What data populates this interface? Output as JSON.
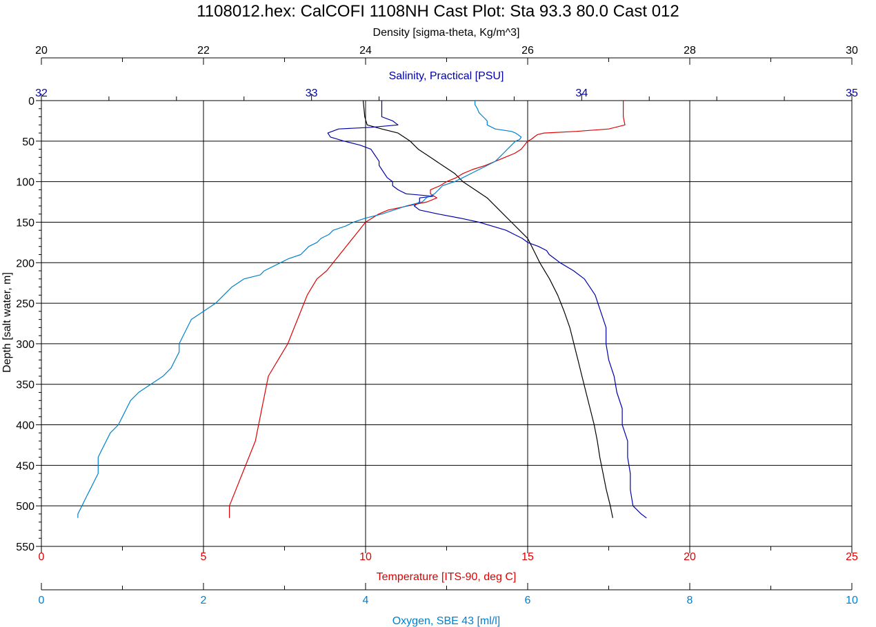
{
  "chart_data": {
    "type": "line",
    "title": "1108012.hex:  CalCOFI 1108NH Cast Plot: Sta 93.3 80.0 Cast 012",
    "ylabel": "Depth [salt water, m]",
    "y_ticks": [
      "0",
      "50",
      "100",
      "150",
      "200",
      "250",
      "300",
      "350",
      "400",
      "450",
      "500",
      "550"
    ],
    "ylim": [
      0,
      550
    ],
    "y_inverted": true,
    "grid": true,
    "axes": {
      "density": {
        "label": "Density [sigma-theta, Kg/m^3]",
        "range": [
          20,
          30
        ],
        "ticks": [
          "20",
          "22",
          "24",
          "26",
          "28",
          "30"
        ],
        "position": "top-outer",
        "color": "#000000"
      },
      "salinity": {
        "label": "Salinity, Practical [PSU]",
        "range": [
          32,
          35
        ],
        "ticks": [
          "32",
          "33",
          "34",
          "35"
        ],
        "position": "top-inner",
        "color": "#0000aa"
      },
      "temperature": {
        "label": "Temperature [ITS-90, deg C]",
        "range": [
          0,
          25
        ],
        "ticks": [
          "0",
          "5",
          "10",
          "15",
          "20",
          "25"
        ],
        "position": "bottom-inner",
        "color": "#dd0000"
      },
      "oxygen": {
        "label": "Oxygen, SBE 43 [ml/l]",
        "range": [
          0,
          10
        ],
        "ticks": [
          "0",
          "2",
          "4",
          "6",
          "8",
          "10"
        ],
        "position": "bottom-outer",
        "color": "#0080d0"
      }
    },
    "series": [
      {
        "name": "Density [sigma-theta, Kg/m^3]",
        "axis": "density",
        "color": "#000000",
        "depth": [
          0,
          10,
          20,
          30,
          35,
          40,
          50,
          60,
          70,
          80,
          90,
          100,
          110,
          120,
          130,
          140,
          150,
          160,
          170,
          180,
          190,
          200,
          220,
          240,
          260,
          280,
          300,
          320,
          340,
          360,
          380,
          400,
          420,
          440,
          460,
          480,
          500,
          515
        ],
        "values": [
          23.97,
          23.98,
          23.99,
          24.02,
          24.2,
          24.4,
          24.55,
          24.65,
          24.8,
          24.95,
          25.1,
          25.2,
          25.35,
          25.5,
          25.6,
          25.7,
          25.8,
          25.9,
          26.0,
          26.05,
          26.1,
          26.15,
          26.27,
          26.37,
          26.45,
          26.52,
          26.57,
          26.62,
          26.67,
          26.72,
          26.77,
          26.82,
          26.86,
          26.89,
          26.93,
          26.97,
          27.02,
          27.05
        ]
      },
      {
        "name": "Salinity, Practical [PSU]",
        "axis": "salinity",
        "color": "#0000aa",
        "depth": [
          0,
          10,
          20,
          25,
          30,
          33,
          35,
          40,
          45,
          50,
          55,
          60,
          65,
          70,
          75,
          80,
          85,
          90,
          95,
          100,
          105,
          110,
          115,
          118,
          120,
          125,
          130,
          135,
          140,
          145,
          150,
          155,
          160,
          165,
          170,
          175,
          180,
          185,
          190,
          195,
          200,
          210,
          220,
          230,
          240,
          250,
          260,
          270,
          280,
          300,
          320,
          340,
          360,
          380,
          400,
          420,
          440,
          460,
          480,
          500,
          510,
          515
        ],
        "values": [
          33.26,
          33.26,
          33.26,
          33.3,
          33.32,
          33.22,
          33.1,
          33.06,
          33.07,
          33.12,
          33.18,
          33.22,
          33.23,
          33.24,
          33.25,
          33.25,
          33.26,
          33.27,
          33.28,
          33.3,
          33.3,
          33.32,
          33.35,
          33.45,
          33.4,
          33.4,
          33.38,
          33.4,
          33.47,
          33.55,
          33.62,
          33.67,
          33.72,
          33.75,
          33.78,
          33.8,
          33.84,
          33.87,
          33.88,
          33.9,
          33.92,
          33.97,
          34.01,
          34.03,
          34.05,
          34.06,
          34.07,
          34.08,
          34.09,
          34.09,
          34.1,
          34.12,
          34.13,
          34.15,
          34.15,
          34.17,
          34.17,
          34.18,
          34.18,
          34.19,
          34.22,
          34.24
        ]
      },
      {
        "name": "Temperature [ITS-90, deg C]",
        "axis": "temperature",
        "color": "#dd0000",
        "depth": [
          0,
          10,
          20,
          30,
          35,
          38,
          40,
          42,
          45,
          48,
          50,
          55,
          60,
          65,
          70,
          75,
          80,
          85,
          90,
          95,
          100,
          105,
          110,
          115,
          120,
          125,
          130,
          135,
          140,
          145,
          150,
          155,
          160,
          170,
          180,
          190,
          200,
          210,
          220,
          230,
          240,
          250,
          260,
          270,
          280,
          290,
          300,
          320,
          340,
          360,
          380,
          400,
          420,
          440,
          460,
          480,
          500,
          510,
          515
        ],
        "values": [
          17.95,
          17.95,
          17.95,
          18.0,
          17.5,
          16.5,
          15.5,
          15.3,
          15.2,
          15.1,
          15.0,
          14.9,
          14.8,
          14.6,
          14.3,
          14.0,
          13.7,
          13.3,
          13.0,
          12.8,
          12.5,
          12.3,
          12.0,
          12.0,
          12.2,
          11.9,
          11.3,
          10.7,
          10.4,
          10.2,
          10.0,
          9.9,
          9.8,
          9.6,
          9.4,
          9.2,
          9.0,
          8.8,
          8.5,
          8.35,
          8.2,
          8.1,
          8.0,
          7.9,
          7.8,
          7.7,
          7.6,
          7.3,
          7.0,
          6.9,
          6.8,
          6.7,
          6.6,
          6.4,
          6.2,
          6.0,
          5.8,
          5.8,
          5.8
        ]
      },
      {
        "name": "Oxygen, SBE 43 [ml/l]",
        "axis": "oxygen",
        "color": "#0080d0",
        "depth": [
          0,
          5,
          10,
          15,
          20,
          25,
          30,
          35,
          38,
          40,
          42,
          45,
          48,
          50,
          55,
          60,
          65,
          70,
          75,
          80,
          85,
          90,
          95,
          100,
          105,
          110,
          115,
          120,
          125,
          130,
          135,
          140,
          145,
          150,
          155,
          160,
          165,
          170,
          175,
          180,
          185,
          190,
          195,
          200,
          205,
          210,
          215,
          220,
          230,
          240,
          250,
          260,
          270,
          280,
          290,
          300,
          310,
          320,
          330,
          340,
          350,
          360,
          370,
          380,
          390,
          400,
          410,
          420,
          430,
          440,
          450,
          460,
          470,
          480,
          490,
          500,
          510,
          515
        ],
        "values": [
          5.35,
          5.35,
          5.38,
          5.4,
          5.45,
          5.5,
          5.5,
          5.6,
          5.8,
          5.85,
          5.88,
          5.92,
          5.9,
          5.85,
          5.8,
          5.75,
          5.7,
          5.65,
          5.6,
          5.5,
          5.4,
          5.3,
          5.2,
          5.1,
          4.95,
          4.9,
          4.85,
          4.75,
          4.7,
          4.5,
          4.35,
          4.2,
          4.0,
          3.85,
          3.75,
          3.6,
          3.55,
          3.45,
          3.4,
          3.3,
          3.25,
          3.2,
          3.05,
          2.95,
          2.85,
          2.75,
          2.7,
          2.5,
          2.35,
          2.25,
          2.15,
          2.0,
          1.85,
          1.8,
          1.75,
          1.7,
          1.7,
          1.65,
          1.6,
          1.5,
          1.35,
          1.2,
          1.1,
          1.05,
          1.0,
          0.95,
          0.85,
          0.8,
          0.75,
          0.7,
          0.7,
          0.7,
          0.65,
          0.6,
          0.55,
          0.5,
          0.45,
          0.45
        ]
      }
    ]
  }
}
